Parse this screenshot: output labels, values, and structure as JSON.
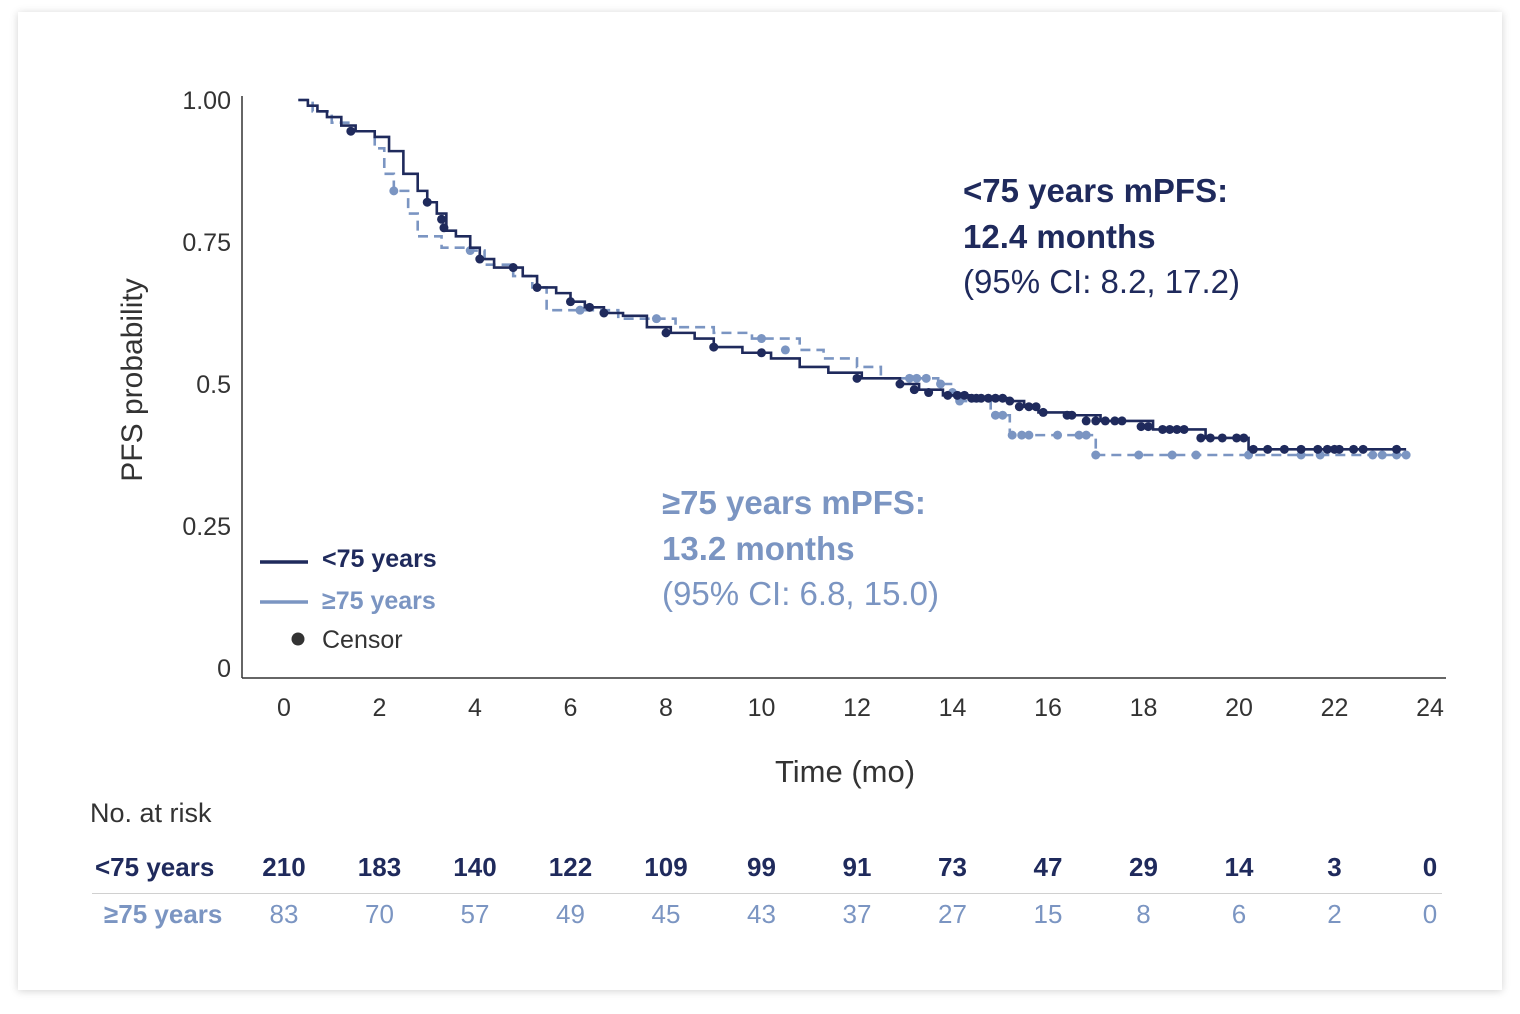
{
  "colors": {
    "lt75": "#1f2a5c",
    "ge75": "#7b95c2",
    "axis": "#333333",
    "text": "#333333",
    "censor": "#333333"
  },
  "chart_data": {
    "type": "line",
    "subtype": "kaplan-meier",
    "ylabel": "PFS probability",
    "xlabel": "Time (mo)",
    "xlim": [
      0,
      24
    ],
    "ylim": [
      0,
      1
    ],
    "x_ticks": [
      0,
      2,
      4,
      6,
      8,
      10,
      12,
      14,
      16,
      18,
      20,
      22,
      24
    ],
    "y_ticks": [
      {
        "value": 1.0,
        "label": "1.00"
      },
      {
        "value": 0.75,
        "label": "0.75"
      },
      {
        "value": 0.5,
        "label": "0.5"
      },
      {
        "value": 0.25,
        "label": "0.25"
      },
      {
        "value": 0,
        "label": "0"
      }
    ],
    "legend": {
      "placement": "bottom-left",
      "items": [
        "<75 years",
        "≥75 years",
        "Censor"
      ]
    },
    "series": [
      {
        "name": "<75 years",
        "style": "solid",
        "steps": [
          [
            0.3,
            1.0
          ],
          [
            0.5,
            0.99
          ],
          [
            0.7,
            0.98
          ],
          [
            0.9,
            0.97
          ],
          [
            1.2,
            0.955
          ],
          [
            1.5,
            0.945
          ],
          [
            1.9,
            0.935
          ],
          [
            2.2,
            0.91
          ],
          [
            2.5,
            0.87
          ],
          [
            2.8,
            0.84
          ],
          [
            3.0,
            0.82
          ],
          [
            3.2,
            0.8
          ],
          [
            3.4,
            0.77
          ],
          [
            3.6,
            0.76
          ],
          [
            3.9,
            0.74
          ],
          [
            4.1,
            0.72
          ],
          [
            4.4,
            0.705
          ],
          [
            5.0,
            0.69
          ],
          [
            5.3,
            0.67
          ],
          [
            5.7,
            0.66
          ],
          [
            6.0,
            0.645
          ],
          [
            6.3,
            0.635
          ],
          [
            6.7,
            0.625
          ],
          [
            7.1,
            0.62
          ],
          [
            7.6,
            0.6
          ],
          [
            8.1,
            0.59
          ],
          [
            8.6,
            0.58
          ],
          [
            9.0,
            0.565
          ],
          [
            9.6,
            0.555
          ],
          [
            10.2,
            0.545
          ],
          [
            10.8,
            0.53
          ],
          [
            11.4,
            0.52
          ],
          [
            12.1,
            0.51
          ],
          [
            12.9,
            0.5
          ],
          [
            13.3,
            0.49
          ],
          [
            13.8,
            0.48
          ],
          [
            14.4,
            0.475
          ],
          [
            15.2,
            0.47
          ],
          [
            15.5,
            0.46
          ],
          [
            15.8,
            0.45
          ],
          [
            16.5,
            0.445
          ],
          [
            17.1,
            0.435
          ],
          [
            18.2,
            0.42
          ],
          [
            18.8,
            0.42
          ],
          [
            19.3,
            0.405
          ],
          [
            20.2,
            0.385
          ],
          [
            21.0,
            0.385
          ],
          [
            23.5,
            0.385
          ]
        ],
        "censors": [
          [
            1.4,
            0.945
          ],
          [
            3.0,
            0.82
          ],
          [
            3.3,
            0.79
          ],
          [
            3.35,
            0.775
          ],
          [
            4.1,
            0.72
          ],
          [
            4.8,
            0.705
          ],
          [
            5.3,
            0.67
          ],
          [
            6.0,
            0.645
          ],
          [
            6.4,
            0.635
          ],
          [
            6.7,
            0.625
          ],
          [
            8.0,
            0.59
          ],
          [
            9.0,
            0.565
          ],
          [
            10.0,
            0.555
          ],
          [
            12.0,
            0.51
          ],
          [
            12.9,
            0.5
          ],
          [
            13.2,
            0.49
          ],
          [
            13.5,
            0.485
          ],
          [
            13.9,
            0.48
          ],
          [
            14.1,
            0.48
          ],
          [
            14.25,
            0.48
          ],
          [
            14.4,
            0.475
          ],
          [
            14.5,
            0.475
          ],
          [
            14.6,
            0.475
          ],
          [
            14.75,
            0.475
          ],
          [
            14.9,
            0.475
          ],
          [
            15.05,
            0.475
          ],
          [
            15.2,
            0.47
          ],
          [
            15.4,
            0.46
          ],
          [
            15.6,
            0.46
          ],
          [
            15.75,
            0.46
          ],
          [
            15.9,
            0.45
          ],
          [
            16.4,
            0.445
          ],
          [
            16.5,
            0.445
          ],
          [
            16.8,
            0.435
          ],
          [
            17.0,
            0.435
          ],
          [
            17.2,
            0.435
          ],
          [
            17.4,
            0.435
          ],
          [
            17.55,
            0.435
          ],
          [
            17.95,
            0.425
          ],
          [
            18.1,
            0.425
          ],
          [
            18.4,
            0.42
          ],
          [
            18.55,
            0.42
          ],
          [
            18.7,
            0.42
          ],
          [
            18.85,
            0.42
          ],
          [
            19.2,
            0.405
          ],
          [
            19.4,
            0.405
          ],
          [
            19.65,
            0.405
          ],
          [
            19.95,
            0.405
          ],
          [
            20.1,
            0.405
          ],
          [
            20.3,
            0.385
          ],
          [
            20.6,
            0.385
          ],
          [
            20.95,
            0.385
          ],
          [
            21.3,
            0.385
          ],
          [
            21.65,
            0.385
          ],
          [
            21.85,
            0.385
          ],
          [
            22.0,
            0.385
          ],
          [
            22.1,
            0.385
          ],
          [
            22.4,
            0.385
          ],
          [
            22.6,
            0.385
          ],
          [
            23.3,
            0.385
          ]
        ]
      },
      {
        "name": "≥75 years",
        "style": "dashed",
        "steps": [
          [
            0.3,
            1.0
          ],
          [
            0.6,
            0.98
          ],
          [
            1.0,
            0.96
          ],
          [
            1.4,
            0.945
          ],
          [
            1.9,
            0.915
          ],
          [
            2.1,
            0.87
          ],
          [
            2.3,
            0.84
          ],
          [
            2.6,
            0.8
          ],
          [
            2.8,
            0.76
          ],
          [
            3.3,
            0.74
          ],
          [
            3.9,
            0.735
          ],
          [
            4.2,
            0.71
          ],
          [
            4.8,
            0.69
          ],
          [
            5.2,
            0.67
          ],
          [
            5.5,
            0.63
          ],
          [
            6.1,
            0.63
          ],
          [
            7.0,
            0.615
          ],
          [
            7.8,
            0.615
          ],
          [
            8.2,
            0.6
          ],
          [
            9.0,
            0.59
          ],
          [
            9.8,
            0.58
          ],
          [
            10.8,
            0.56
          ],
          [
            11.3,
            0.545
          ],
          [
            12.0,
            0.53
          ],
          [
            12.5,
            0.51
          ],
          [
            13.0,
            0.51
          ],
          [
            13.7,
            0.5
          ],
          [
            14.0,
            0.485
          ],
          [
            14.2,
            0.47
          ],
          [
            14.8,
            0.445
          ],
          [
            15.2,
            0.41
          ],
          [
            16.8,
            0.41
          ],
          [
            17.0,
            0.375
          ],
          [
            23.5,
            0.375
          ]
        ],
        "censors": [
          [
            2.3,
            0.84
          ],
          [
            3.9,
            0.735
          ],
          [
            6.2,
            0.63
          ],
          [
            7.8,
            0.615
          ],
          [
            10.0,
            0.58
          ],
          [
            10.5,
            0.56
          ],
          [
            13.1,
            0.51
          ],
          [
            13.25,
            0.51
          ],
          [
            13.45,
            0.51
          ],
          [
            13.75,
            0.5
          ],
          [
            14.0,
            0.485
          ],
          [
            14.15,
            0.47
          ],
          [
            14.9,
            0.445
          ],
          [
            15.05,
            0.445
          ],
          [
            15.25,
            0.41
          ],
          [
            15.45,
            0.41
          ],
          [
            15.6,
            0.41
          ],
          [
            16.2,
            0.41
          ],
          [
            16.65,
            0.41
          ],
          [
            16.8,
            0.41
          ],
          [
            17.0,
            0.375
          ],
          [
            17.9,
            0.375
          ],
          [
            18.6,
            0.375
          ],
          [
            19.1,
            0.375
          ],
          [
            20.2,
            0.375
          ],
          [
            21.3,
            0.375
          ],
          [
            21.7,
            0.375
          ],
          [
            22.8,
            0.375
          ],
          [
            23.0,
            0.375
          ],
          [
            23.3,
            0.375
          ],
          [
            23.5,
            0.375
          ]
        ]
      }
    ],
    "annotations": {
      "lt75": {
        "line1": "<75 years mPFS:",
        "line2": "12.4 months",
        "line3": "(95% CI: 8.2, 17.2)"
      },
      "ge75": {
        "line1": "≥75 years mPFS:",
        "line2": "13.2 months",
        "line3": "(95% CI: 6.8, 15.0)"
      }
    }
  },
  "risk_table": {
    "title": "No. at risk",
    "lt75": {
      "label": "<75 years",
      "values": [
        "210",
        "183",
        "140",
        "122",
        "109",
        "99",
        "91",
        "73",
        "47",
        "29",
        "14",
        "3",
        "0"
      ]
    },
    "ge75": {
      "label": "≥75 years",
      "values": [
        "83",
        "70",
        "57",
        "49",
        "45",
        "43",
        "37",
        "27",
        "15",
        "8",
        "6",
        "2",
        "0"
      ]
    }
  }
}
